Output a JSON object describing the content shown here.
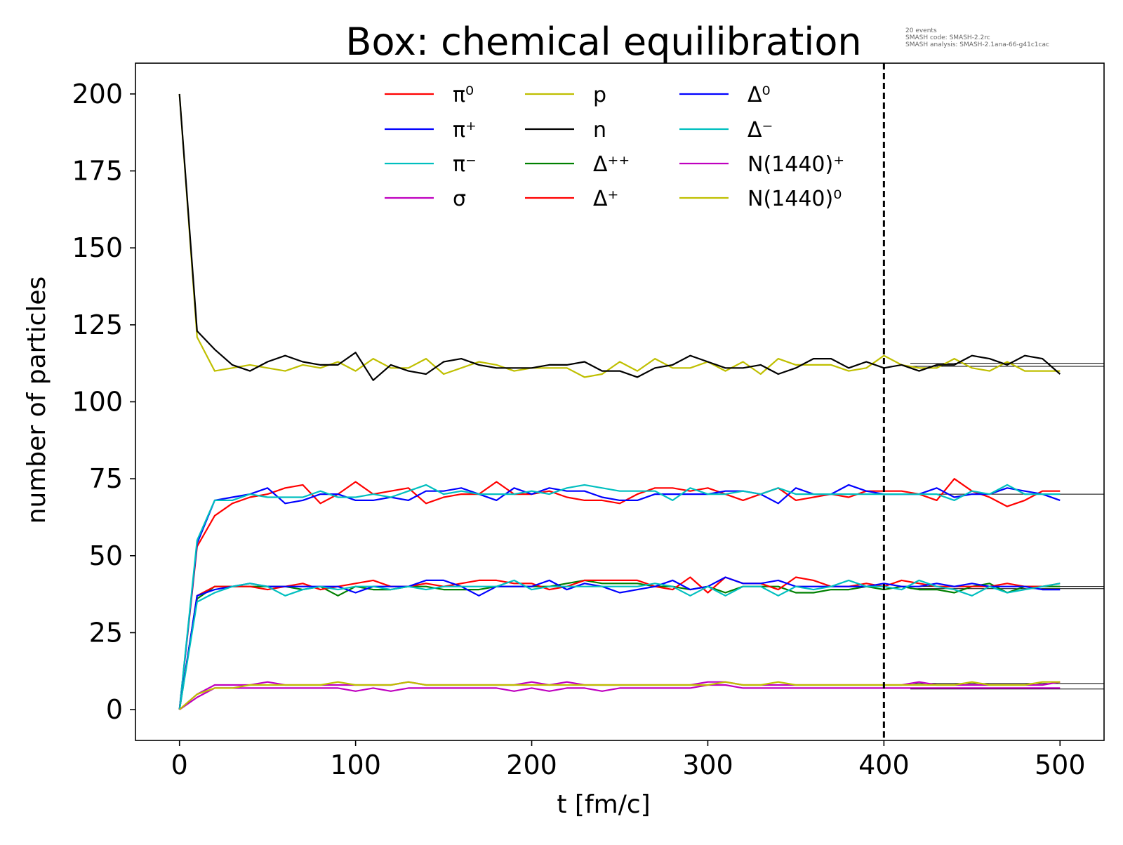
{
  "chart_data": {
    "type": "line",
    "title": "Box: chemical equilibration",
    "info_lines": [
      "20 events",
      "SMASH code:      SMASH-2.2rc",
      "SMASH analysis:  SMASH-2.1ana-66-g41c1cac"
    ],
    "xlabel": "t [fm/c]",
    "ylabel": "number of particles",
    "xlim": [
      -25,
      525
    ],
    "ylim": [
      -10,
      210
    ],
    "xticks": [
      0,
      100,
      200,
      300,
      400,
      500
    ],
    "yticks": [
      0,
      25,
      50,
      75,
      100,
      125,
      150,
      175,
      200
    ],
    "grid": false,
    "legend_position": "top-center",
    "legend_columns": 3,
    "vertical_marker": {
      "x": 400,
      "style": "dashed",
      "color": "#000000"
    },
    "x": [
      0,
      10,
      20,
      30,
      40,
      50,
      60,
      70,
      80,
      90,
      100,
      110,
      120,
      130,
      140,
      150,
      160,
      170,
      180,
      190,
      200,
      210,
      220,
      230,
      240,
      250,
      260,
      270,
      280,
      290,
      300,
      310,
      320,
      330,
      340,
      350,
      360,
      370,
      380,
      390,
      400,
      410,
      420,
      430,
      440,
      450,
      460,
      470,
      480,
      490,
      500
    ],
    "equilibrium_lines": [
      {
        "value": 112.5,
        "x_start": 415,
        "x_end": 525
      },
      {
        "value": 111.5,
        "x_start": 415,
        "x_end": 525
      },
      {
        "value": 70,
        "x_start": 415,
        "x_end": 525
      },
      {
        "value": 40,
        "x_start": 415,
        "x_end": 525
      },
      {
        "value": 39.3,
        "x_start": 415,
        "x_end": 525
      },
      {
        "value": 8.5,
        "x_start": 415,
        "x_end": 525
      },
      {
        "value": 6.7,
        "x_start": 415,
        "x_end": 525
      }
    ],
    "series": [
      {
        "name": "π⁰",
        "color": "#ff0000",
        "values": [
          0,
          53,
          63,
          67,
          69,
          70,
          72,
          73,
          67,
          70,
          74,
          70,
          71,
          72,
          67,
          69,
          70,
          70,
          74,
          70,
          70,
          71,
          69,
          68,
          68,
          67,
          70,
          72,
          72,
          71,
          72,
          70,
          68,
          70,
          72,
          68,
          69,
          70,
          69,
          71,
          71,
          71,
          70,
          68,
          75,
          71,
          69,
          66,
          68,
          71,
          71
        ]
      },
      {
        "name": "π⁺",
        "color": "#0000ff",
        "values": [
          0,
          54,
          68,
          69,
          70,
          72,
          67,
          68,
          70,
          70,
          68,
          68,
          69,
          68,
          71,
          71,
          72,
          70,
          68,
          72,
          70,
          72,
          71,
          71,
          69,
          68,
          68,
          70,
          70,
          70,
          70,
          71,
          71,
          70,
          67,
          72,
          70,
          70,
          73,
          71,
          70,
          70,
          70,
          72,
          69,
          70,
          70,
          72,
          71,
          70,
          68
        ]
      },
      {
        "name": "π⁻",
        "color": "#00bfbf",
        "values": [
          0,
          55,
          68,
          68,
          70,
          69,
          69,
          69,
          71,
          69,
          69,
          70,
          69,
          71,
          73,
          70,
          71,
          70,
          70,
          70,
          71,
          70,
          72,
          73,
          72,
          71,
          71,
          71,
          68,
          72,
          70,
          70,
          71,
          70,
          72,
          70,
          70,
          70,
          70,
          70,
          70,
          70,
          70,
          70,
          68,
          71,
          70,
          73,
          70,
          70,
          70
        ]
      },
      {
        "name": "σ",
        "color": "#bf00bf",
        "values": [
          0,
          4,
          7,
          7,
          7,
          7,
          7,
          7,
          7,
          7,
          6,
          7,
          6,
          7,
          7,
          7,
          7,
          7,
          7,
          6,
          7,
          6,
          7,
          7,
          6,
          7,
          7,
          7,
          7,
          7,
          8,
          8,
          7,
          7,
          7,
          7,
          7,
          7,
          7,
          7,
          7,
          7,
          7,
          7,
          7,
          7,
          7,
          7,
          7,
          7,
          7
        ]
      },
      {
        "name": "p",
        "color": "#bfbf00",
        "values": [
          200,
          121,
          110,
          111,
          112,
          111,
          110,
          112,
          111,
          113,
          110,
          114,
          111,
          111,
          114,
          109,
          111,
          113,
          112,
          110,
          111,
          111,
          111,
          108,
          109,
          113,
          110,
          114,
          111,
          111,
          113,
          110,
          113,
          109,
          114,
          112,
          112,
          112,
          110,
          111,
          115,
          112,
          111,
          111,
          114,
          111,
          110,
          113,
          110,
          110,
          110
        ]
      },
      {
        "name": "n",
        "color": "#000000",
        "values": [
          200,
          123,
          117,
          112,
          110,
          113,
          115,
          113,
          112,
          112,
          116,
          107,
          112,
          110,
          109,
          113,
          114,
          112,
          111,
          111,
          111,
          112,
          112,
          113,
          110,
          110,
          108,
          111,
          112,
          115,
          113,
          111,
          111,
          112,
          109,
          111,
          114,
          114,
          111,
          113,
          111,
          112,
          110,
          112,
          112,
          115,
          114,
          112,
          115,
          114,
          109
        ]
      },
      {
        "name": "Δ⁺⁺",
        "color": "#008000",
        "values": [
          0,
          36,
          40,
          40,
          40,
          40,
          40,
          39,
          40,
          37,
          40,
          39,
          39,
          40,
          40,
          39,
          39,
          39,
          40,
          40,
          40,
          40,
          41,
          42,
          41,
          41,
          41,
          40,
          40,
          39,
          40,
          38,
          40,
          40,
          40,
          38,
          38,
          39,
          39,
          40,
          39,
          40,
          39,
          39,
          38,
          40,
          41,
          38,
          40,
          40,
          40
        ]
      },
      {
        "name": "Δ⁺",
        "color": "#ff0000",
        "values": [
          0,
          37,
          40,
          40,
          40,
          39,
          40,
          41,
          39,
          40,
          41,
          42,
          40,
          40,
          41,
          40,
          41,
          42,
          42,
          41,
          41,
          39,
          40,
          42,
          42,
          42,
          42,
          40,
          39,
          43,
          38,
          43,
          41,
          41,
          39,
          43,
          42,
          40,
          40,
          41,
          40,
          42,
          41,
          40,
          40,
          40,
          40,
          41,
          40,
          40,
          41
        ]
      },
      {
        "name": "Δ⁰",
        "color": "#0000ff",
        "values": [
          0,
          37,
          39,
          40,
          41,
          40,
          40,
          40,
          40,
          40,
          38,
          40,
          40,
          40,
          42,
          42,
          40,
          37,
          40,
          40,
          40,
          42,
          39,
          41,
          40,
          38,
          39,
          40,
          42,
          39,
          40,
          43,
          41,
          41,
          42,
          40,
          40,
          40,
          40,
          40,
          41,
          40,
          40,
          41,
          40,
          41,
          40,
          40,
          40,
          39,
          39
        ]
      },
      {
        "name": "Δ⁻",
        "color": "#00bfbf",
        "values": [
          0,
          35,
          38,
          40,
          41,
          40,
          37,
          39,
          40,
          39,
          40,
          40,
          39,
          40,
          39,
          40,
          40,
          40,
          40,
          42,
          39,
          40,
          40,
          40,
          40,
          40,
          40,
          41,
          40,
          37,
          40,
          37,
          40,
          40,
          37,
          40,
          39,
          40,
          42,
          40,
          40,
          39,
          42,
          40,
          39,
          37,
          40,
          38,
          39,
          40,
          41
        ]
      },
      {
        "name": "N(1440)⁺",
        "color": "#bf00bf",
        "values": [
          0,
          5,
          8,
          8,
          8,
          9,
          8,
          8,
          8,
          8,
          8,
          8,
          8,
          9,
          8,
          8,
          8,
          8,
          8,
          8,
          9,
          8,
          9,
          8,
          8,
          8,
          8,
          8,
          8,
          8,
          9,
          9,
          8,
          8,
          8,
          8,
          8,
          8,
          8,
          8,
          8,
          8,
          9,
          8,
          8,
          8,
          8,
          8,
          8,
          8,
          9
        ]
      },
      {
        "name": "N(1440)⁰",
        "color": "#bfbf00",
        "values": [
          0,
          5,
          7,
          7,
          8,
          8,
          8,
          8,
          8,
          9,
          8,
          8,
          8,
          9,
          8,
          8,
          8,
          8,
          8,
          8,
          8,
          8,
          8,
          8,
          8,
          8,
          8,
          8,
          8,
          8,
          8,
          9,
          8,
          8,
          9,
          8,
          8,
          8,
          8,
          8,
          8,
          8,
          8,
          8,
          8,
          9,
          8,
          8,
          8,
          9,
          9
        ]
      }
    ]
  }
}
